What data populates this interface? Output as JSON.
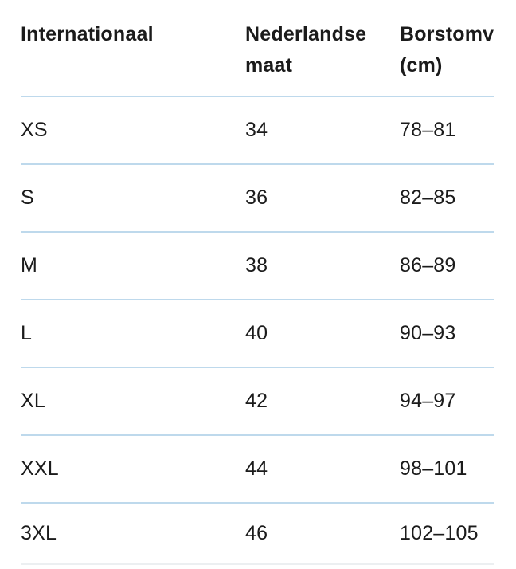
{
  "table": {
    "columns": [
      {
        "line1": "Internationaal",
        "line2": ""
      },
      {
        "line1": "Nederlandse",
        "line2": "maat"
      },
      {
        "line1": "Borstomv",
        "line2": "(cm)"
      }
    ],
    "rows": [
      {
        "intl": "XS",
        "nl": "34",
        "chest": "78–81"
      },
      {
        "intl": "S",
        "nl": "36",
        "chest": "82–85"
      },
      {
        "intl": "M",
        "nl": "38",
        "chest": "86–89"
      },
      {
        "intl": "L",
        "nl": "40",
        "chest": "90–93"
      },
      {
        "intl": "XL",
        "nl": "42",
        "chest": "94–97"
      },
      {
        "intl": "XXL",
        "nl": "44",
        "chest": "98–101"
      },
      {
        "intl": "3XL",
        "nl": "46",
        "chest": "102–105"
      }
    ]
  },
  "colors": {
    "text": "#1b1b1b",
    "row_divider": "#bed9ec",
    "bottom_divider": "#eceff1",
    "background": "#ffffff"
  }
}
